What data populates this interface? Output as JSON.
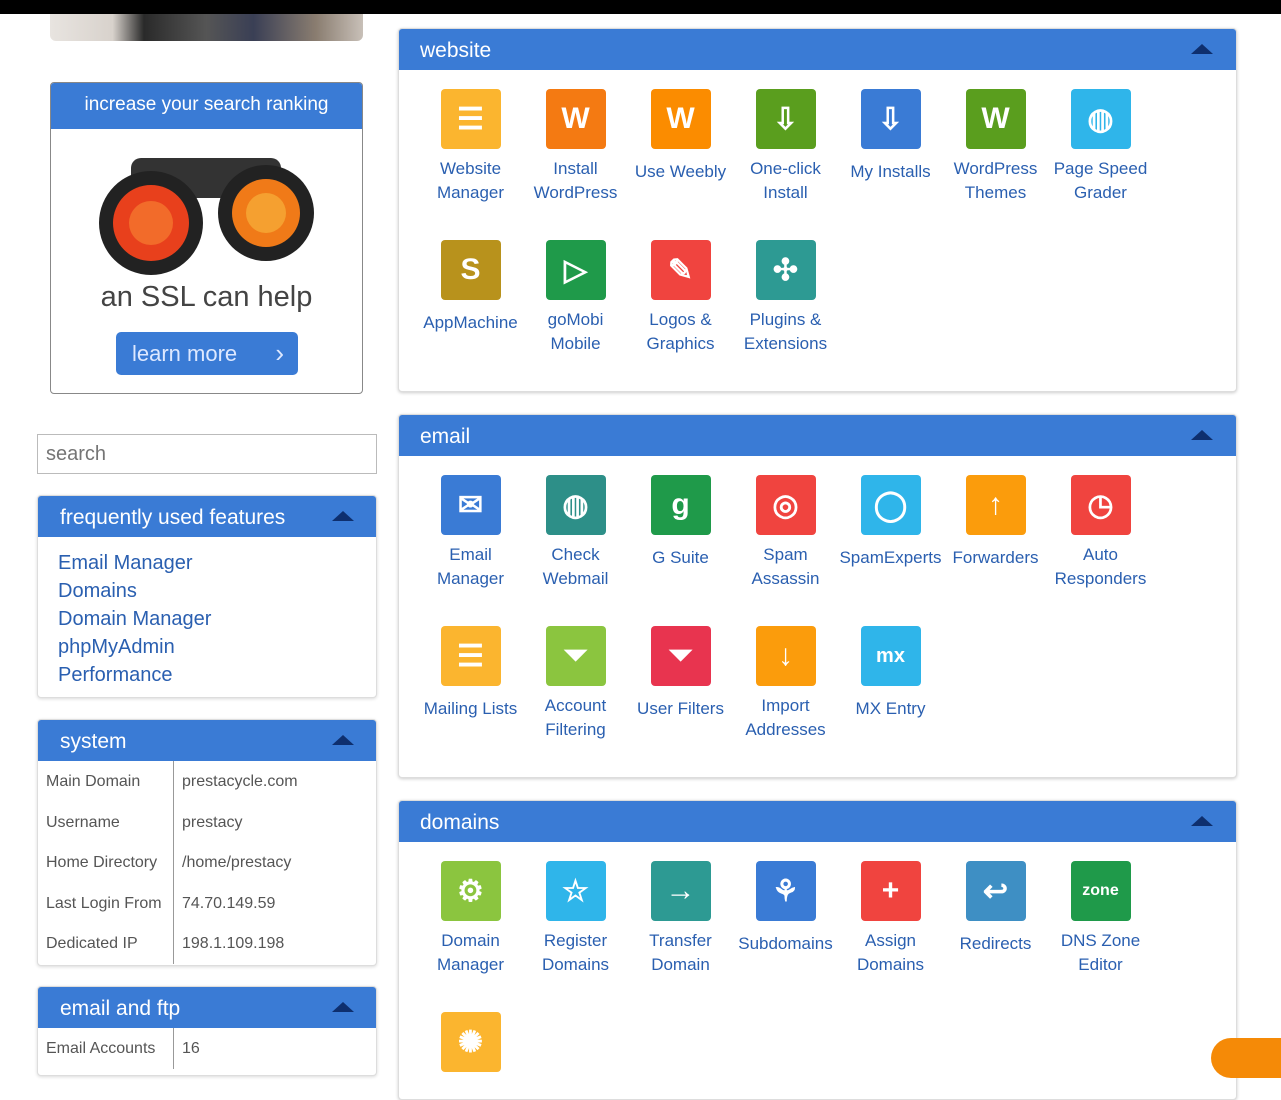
{
  "ad": {
    "header": "increase your search ranking",
    "tagline": "an SSL can help",
    "button": "learn more"
  },
  "search": {
    "placeholder": "search"
  },
  "frequent": {
    "title": "frequently used features",
    "items": [
      "Email Manager",
      "Domains",
      "Domain Manager",
      "phpMyAdmin",
      "Performance"
    ]
  },
  "system": {
    "title": "system",
    "rows": [
      [
        "Main Domain",
        "prestacycle.com"
      ],
      [
        "Username",
        "prestacy"
      ],
      [
        "Home Directory",
        "/home/prestacy"
      ],
      [
        "Last Login From",
        "74.70.149.59"
      ],
      [
        "Dedicated IP",
        "198.1.109.198"
      ]
    ]
  },
  "emailftp": {
    "title": "email and ftp",
    "rows": [
      [
        "Email Accounts",
        "16"
      ]
    ]
  },
  "panels": [
    {
      "title": "website",
      "items": [
        {
          "label": "Website\nManager",
          "color": "#fbb52f",
          "glyph": "☰",
          "icon": "website-manager-icon"
        },
        {
          "label": "Install\nWordPress",
          "color": "#f47a12",
          "glyph": "W",
          "icon": "install-wordpress-icon"
        },
        {
          "label": "Use Weebly",
          "color": "#fb8c00",
          "glyph": "W",
          "icon": "weebly-icon"
        },
        {
          "label": "One-click\nInstall",
          "color": "#5a9e1e",
          "glyph": "⇩",
          "icon": "one-click-install-icon"
        },
        {
          "label": "My Installs",
          "color": "#3a7bd5",
          "glyph": "⇩",
          "icon": "my-installs-icon"
        },
        {
          "label": "WordPress\nThemes",
          "color": "#5a9e1e",
          "glyph": "W",
          "icon": "wordpress-themes-icon"
        },
        {
          "label": "Page Speed\nGrader",
          "color": "#2fb5ea",
          "glyph": "◍",
          "icon": "page-speed-icon"
        },
        {
          "label": "AppMachine",
          "color": "#b8921c",
          "glyph": "S",
          "icon": "appmachine-icon"
        },
        {
          "label": "goMobi\nMobile",
          "color": "#1f9a4a",
          "glyph": "▷",
          "icon": "gomobi-icon"
        },
        {
          "label": "Logos &\nGraphics",
          "color": "#f0443f",
          "glyph": "✎",
          "icon": "logos-graphics-icon"
        },
        {
          "label": "Plugins &\nExtensions",
          "color": "#2d9a93",
          "glyph": "✣",
          "icon": "plugins-icon"
        }
      ]
    },
    {
      "title": "email",
      "items": [
        {
          "label": "Email\nManager",
          "color": "#3a7bd5",
          "glyph": "✉",
          "icon": "email-manager-icon"
        },
        {
          "label": "Check\nWebmail",
          "color": "#2d8f88",
          "glyph": "◍",
          "icon": "webmail-icon"
        },
        {
          "label": "G Suite",
          "color": "#1f9a4a",
          "glyph": "g",
          "icon": "g-suite-icon"
        },
        {
          "label": "Spam\nAssassin",
          "color": "#f0443f",
          "glyph": "◎",
          "icon": "spam-assassin-icon"
        },
        {
          "label": "SpamExperts",
          "color": "#2fb5ea",
          "glyph": "◯",
          "icon": "spamexperts-icon"
        },
        {
          "label": "Forwarders",
          "color": "#fb9c0c",
          "glyph": "↑",
          "icon": "forwarders-icon"
        },
        {
          "label": "Auto\nResponders",
          "color": "#f0443f",
          "glyph": "◷",
          "icon": "auto-responders-icon"
        },
        {
          "label": "Mailing Lists",
          "color": "#fbb52f",
          "glyph": "☰",
          "icon": "mailing-lists-icon"
        },
        {
          "label": "Account\nFiltering",
          "color": "#8bc53f",
          "glyph": "⏷",
          "icon": "account-filtering-icon"
        },
        {
          "label": "User Filters",
          "color": "#e8344f",
          "glyph": "⏷",
          "icon": "user-filters-icon"
        },
        {
          "label": "Import\nAddresses",
          "color": "#fb9c0c",
          "glyph": "↓",
          "icon": "import-addresses-icon"
        },
        {
          "label": "MX Entry",
          "color": "#2fb5ea",
          "glyph": "mx",
          "icon": "mx-entry-icon"
        }
      ]
    },
    {
      "title": "domains",
      "items": [
        {
          "label": "Domain\nManager",
          "color": "#8bc53f",
          "glyph": "⚙",
          "icon": "domain-manager-icon"
        },
        {
          "label": "Register\nDomains",
          "color": "#2fb5ea",
          "glyph": "☆",
          "icon": "register-domains-icon"
        },
        {
          "label": "Transfer\nDomain",
          "color": "#2d9a93",
          "glyph": "→",
          "icon": "transfer-domain-icon"
        },
        {
          "label": "Subdomains",
          "color": "#3a7bd5",
          "glyph": "⚘",
          "icon": "subdomains-icon"
        },
        {
          "label": "Assign\nDomains",
          "color": "#f0443f",
          "glyph": "+",
          "icon": "assign-domains-icon"
        },
        {
          "label": "Redirects",
          "color": "#3e8fc4",
          "glyph": "↩",
          "icon": "redirects-icon"
        },
        {
          "label": "DNS Zone\nEditor",
          "color": "#1f9a4a",
          "glyph": "zone",
          "icon": "dns-zone-editor-icon"
        },
        {
          "label": "",
          "color": "#fbb52f",
          "glyph": "✺",
          "icon": "domain-tool-icon"
        }
      ]
    }
  ]
}
